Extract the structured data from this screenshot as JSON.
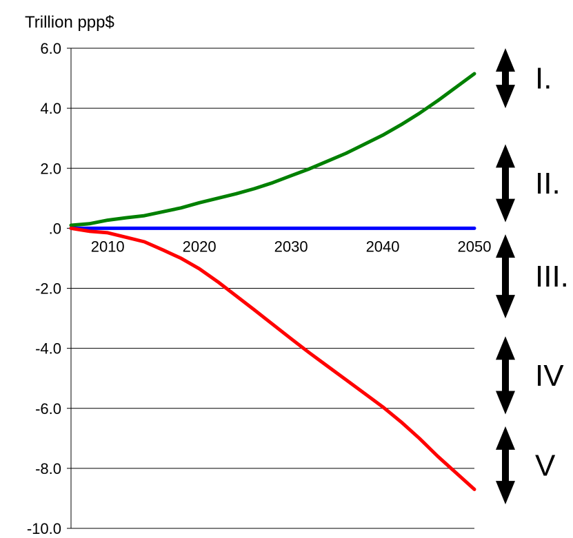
{
  "chart_data": {
    "type": "line",
    "ylabel": "Trillion ppp$",
    "ylim": [
      -10,
      6
    ],
    "xlim": [
      2006,
      2050
    ],
    "y_ticks": [
      "6.0",
      "4.0",
      "2.0",
      ".0",
      "-2.0",
      "-4.0",
      "-6.0",
      "-8.0",
      "-10.0"
    ],
    "y_tick_values": [
      6,
      4,
      2,
      0,
      -2,
      -4,
      -6,
      -8,
      -10
    ],
    "x_ticks": [
      "2010",
      "2020",
      "2030",
      "2040",
      "2050"
    ],
    "x_tick_values": [
      2010,
      2020,
      2030,
      2040,
      2050
    ],
    "grid": true,
    "series": [
      {
        "color": "#008000",
        "x": [
          2006,
          2008,
          2010,
          2012,
          2014,
          2016,
          2018,
          2020,
          2022,
          2024,
          2026,
          2028,
          2030,
          2032,
          2034,
          2036,
          2038,
          2040,
          2042,
          2044,
          2046,
          2048,
          2050
        ],
        "y": [
          0.1,
          0.15,
          0.27,
          0.35,
          0.42,
          0.55,
          0.68,
          0.85,
          1.0,
          1.15,
          1.32,
          1.52,
          1.75,
          1.98,
          2.24,
          2.5,
          2.8,
          3.1,
          3.45,
          3.83,
          4.25,
          4.7,
          5.15
        ]
      },
      {
        "color": "#0000ff",
        "x": [
          2006,
          2050
        ],
        "y": [
          0,
          0
        ]
      },
      {
        "color": "#ff0000",
        "x": [
          2006,
          2008,
          2010,
          2012,
          2014,
          2016,
          2018,
          2020,
          2022,
          2024,
          2026,
          2028,
          2030,
          2032,
          2034,
          2036,
          2038,
          2040,
          2042,
          2044,
          2046,
          2048,
          2050
        ],
        "y": [
          0,
          -0.1,
          -0.15,
          -0.3,
          -0.45,
          -0.72,
          -1.0,
          -1.35,
          -1.78,
          -2.25,
          -2.72,
          -3.2,
          -3.68,
          -4.15,
          -4.6,
          -5.05,
          -5.5,
          -5.95,
          -6.45,
          -7.0,
          -7.6,
          -8.15,
          -8.7
        ]
      }
    ],
    "annotations": [
      {
        "label": "I.",
        "from": 6,
        "to": 4
      },
      {
        "label": "II.",
        "from": 2.8,
        "to": 0.2
      },
      {
        "label": "III.",
        "from": -0.2,
        "to": -3.0
      },
      {
        "label": "IV",
        "from": -3.6,
        "to": -6.2
      },
      {
        "label": "V",
        "from": -6.6,
        "to": -9.2
      }
    ],
    "annotation_color": "#000000"
  }
}
